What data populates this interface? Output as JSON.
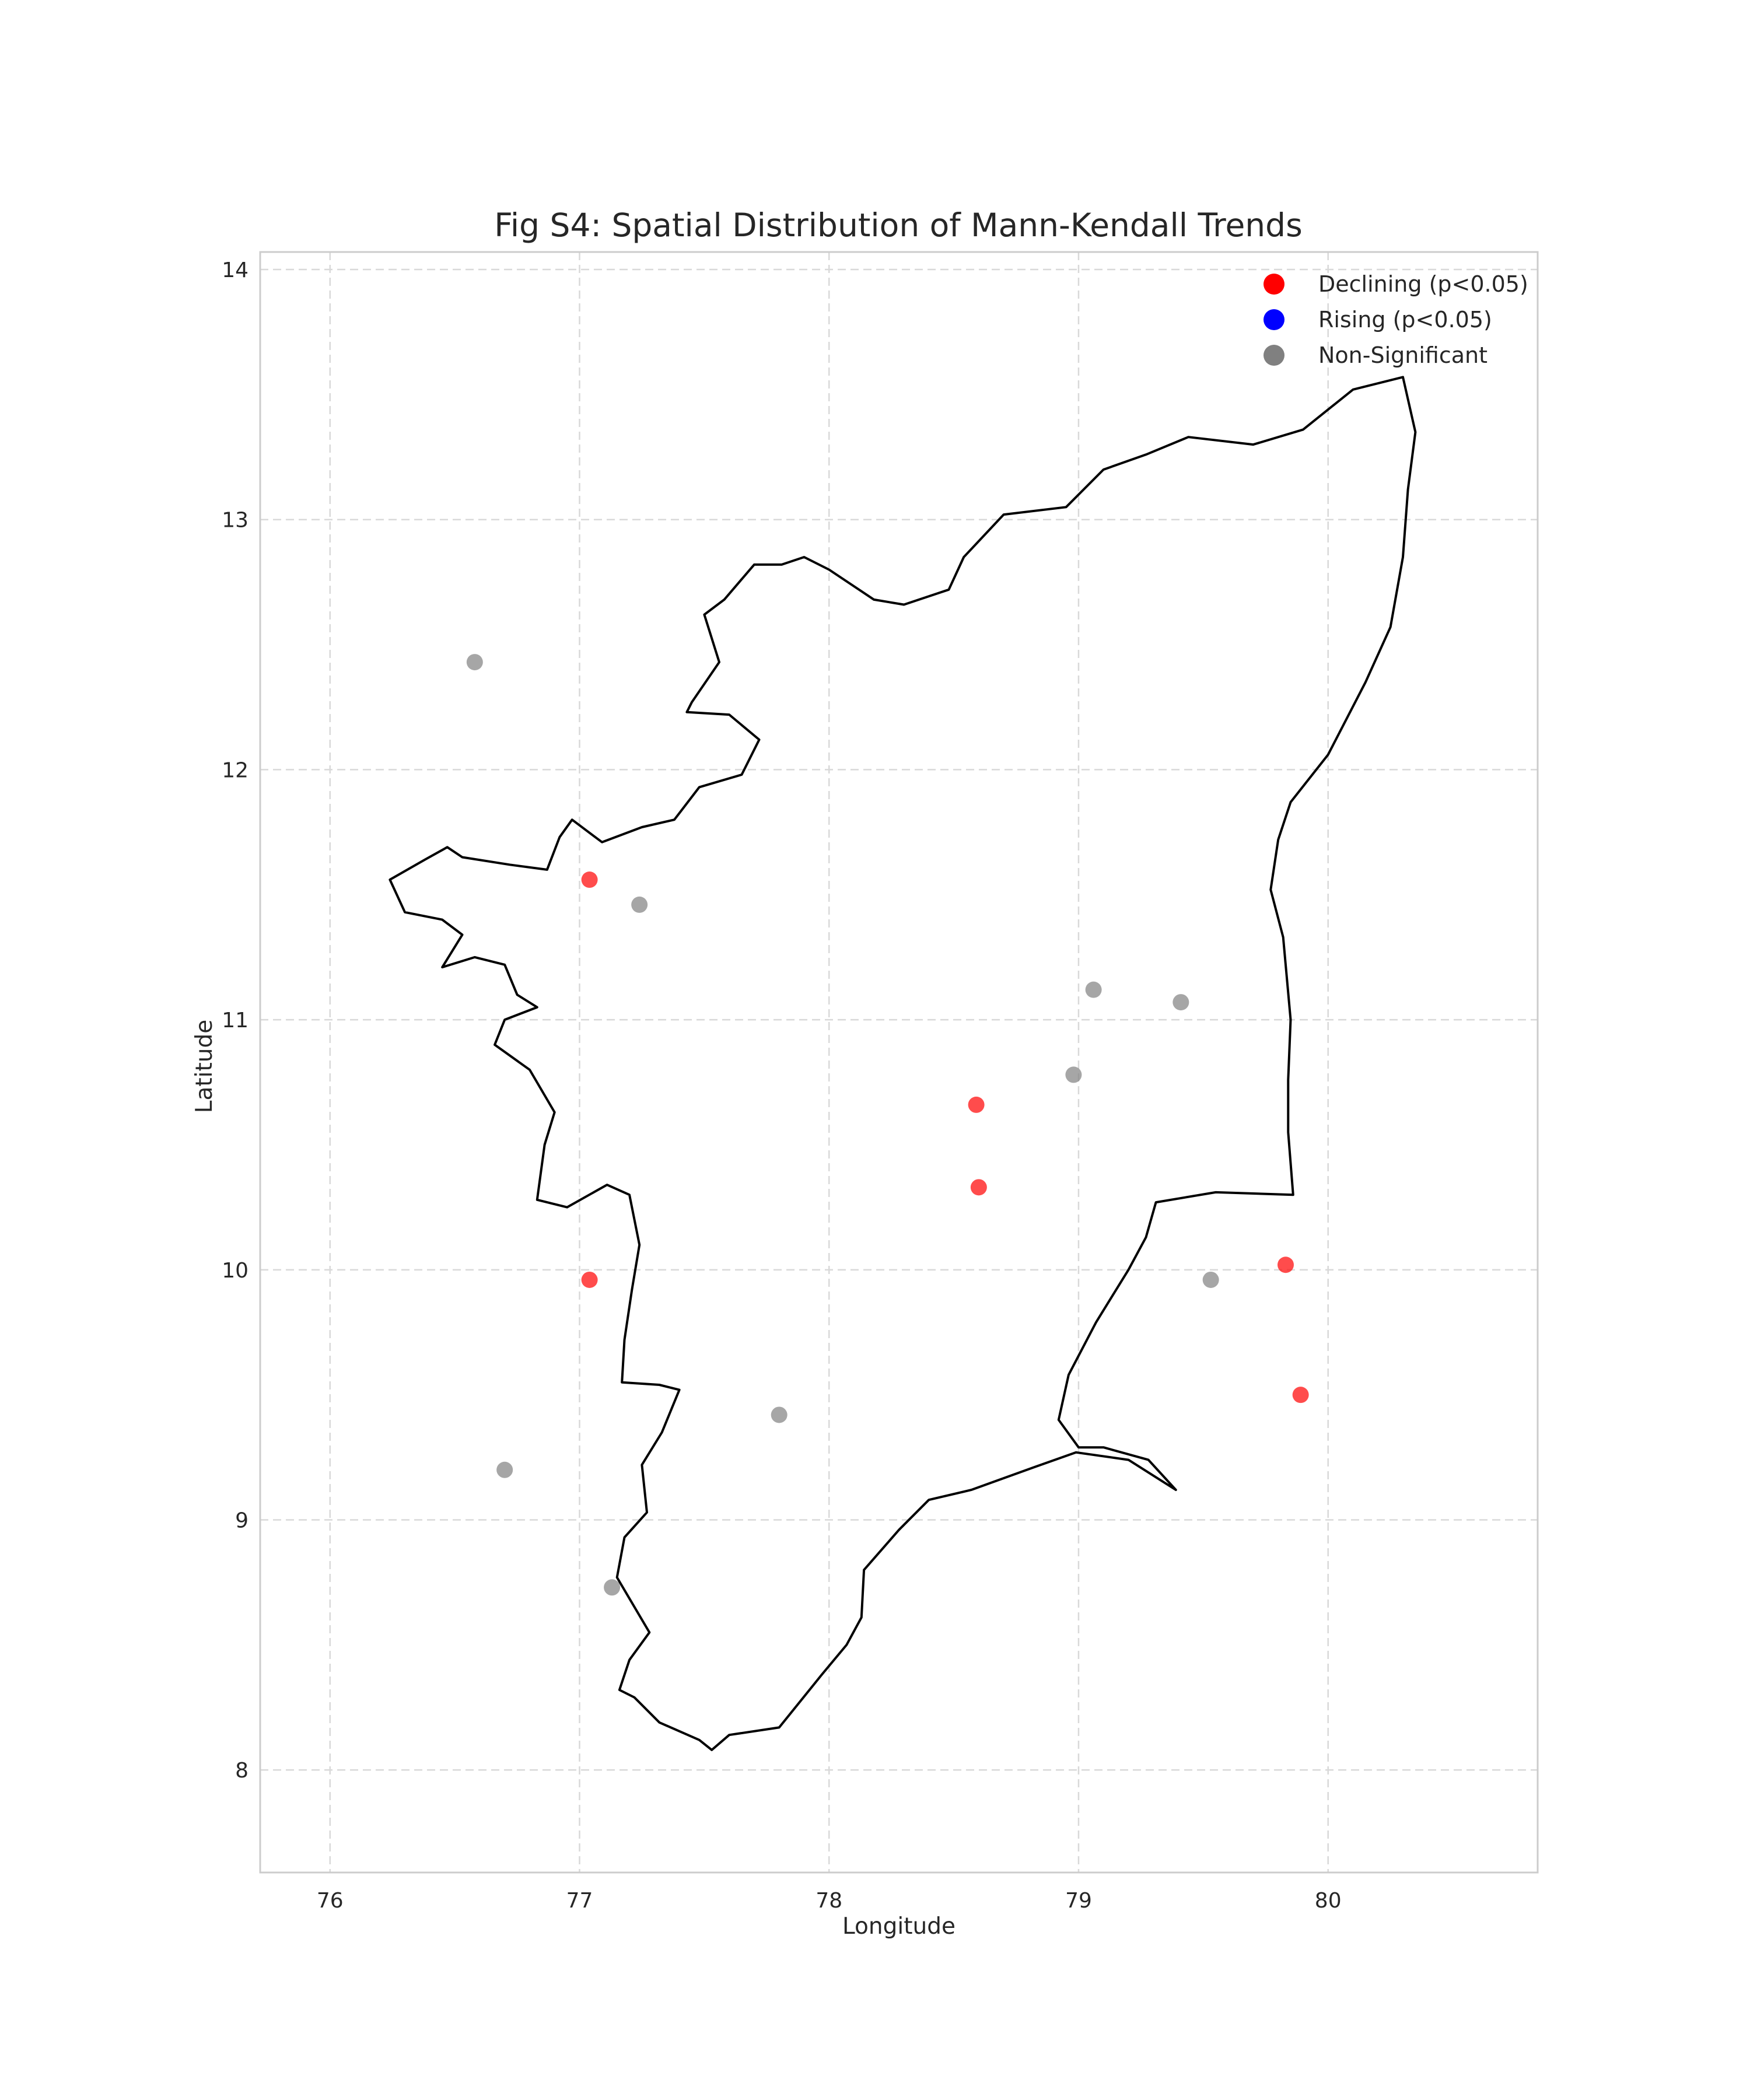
{
  "title": "Fig S4: Spatial Distribution of Mann-Kendall Trends",
  "chart_data": {
    "type": "scatter",
    "title": "Fig S4: Spatial Distribution of Mann-Kendall Trends",
    "xlabel": "Longitude",
    "ylabel": "Latitude",
    "xlim": [
      75.72,
      80.84
    ],
    "ylim": [
      7.59,
      14.07
    ],
    "xticks": [
      "76",
      "77",
      "78",
      "79",
      "80"
    ],
    "yticks": [
      "8",
      "9",
      "10",
      "11",
      "12",
      "13",
      "14"
    ],
    "grid": true,
    "legend_position": "top-right",
    "legend": [
      {
        "label": "Declining (p<0.05)",
        "color": "#ff0000"
      },
      {
        "label": "Rising (p<0.05)",
        "color": "#0000ff"
      },
      {
        "label": "Non-Significant",
        "color": "#808080"
      }
    ],
    "series": [
      {
        "name": "Declining (p<0.05)",
        "color": "#ff0000",
        "points": [
          {
            "x": 77.04,
            "y": 11.56
          },
          {
            "x": 78.59,
            "y": 10.66
          },
          {
            "x": 78.6,
            "y": 10.33
          },
          {
            "x": 77.04,
            "y": 9.96
          },
          {
            "x": 79.83,
            "y": 10.02
          },
          {
            "x": 79.89,
            "y": 9.5
          }
        ]
      },
      {
        "name": "Rising (p<0.05)",
        "color": "#0000ff",
        "points": []
      },
      {
        "name": "Non-Significant",
        "color": "#808080",
        "points": [
          {
            "x": 76.58,
            "y": 12.43
          },
          {
            "x": 77.24,
            "y": 11.46
          },
          {
            "x": 79.06,
            "y": 11.12
          },
          {
            "x": 79.41,
            "y": 11.07
          },
          {
            "x": 78.98,
            "y": 10.78
          },
          {
            "x": 79.53,
            "y": 9.96
          },
          {
            "x": 77.8,
            "y": 9.42
          },
          {
            "x": 76.7,
            "y": 9.2
          },
          {
            "x": 77.13,
            "y": 8.73
          }
        ]
      }
    ],
    "boundary": [
      [
        77.22,
        8.29
      ],
      [
        77.32,
        8.19
      ],
      [
        77.48,
        8.12
      ],
      [
        77.53,
        8.08
      ],
      [
        77.6,
        8.14
      ],
      [
        77.8,
        8.17
      ],
      [
        77.97,
        8.38
      ],
      [
        78.07,
        8.5
      ],
      [
        78.13,
        8.61
      ],
      [
        78.14,
        8.8
      ],
      [
        78.28,
        8.96
      ],
      [
        78.4,
        9.08
      ],
      [
        78.57,
        9.12
      ],
      [
        78.82,
        9.21
      ],
      [
        78.99,
        9.27
      ],
      [
        79.2,
        9.24
      ],
      [
        79.39,
        9.12
      ],
      [
        79.28,
        9.24
      ],
      [
        79.1,
        9.29
      ],
      [
        79.0,
        9.29
      ],
      [
        78.92,
        9.4
      ],
      [
        78.96,
        9.58
      ],
      [
        79.07,
        9.79
      ],
      [
        79.2,
        10.0
      ],
      [
        79.27,
        10.13
      ],
      [
        79.31,
        10.27
      ],
      [
        79.55,
        10.31
      ],
      [
        79.86,
        10.3
      ],
      [
        79.84,
        10.55
      ],
      [
        79.84,
        10.76
      ],
      [
        79.85,
        11.0
      ],
      [
        79.82,
        11.33
      ],
      [
        79.77,
        11.52
      ],
      [
        79.8,
        11.72
      ],
      [
        79.85,
        11.87
      ],
      [
        80.0,
        12.06
      ],
      [
        80.15,
        12.35
      ],
      [
        80.25,
        12.57
      ],
      [
        80.3,
        12.85
      ],
      [
        80.32,
        13.12
      ],
      [
        80.35,
        13.35
      ],
      [
        80.3,
        13.57
      ],
      [
        80.1,
        13.52
      ],
      [
        79.9,
        13.36
      ],
      [
        79.7,
        13.3
      ],
      [
        79.44,
        13.33
      ],
      [
        79.27,
        13.26
      ],
      [
        79.1,
        13.2
      ],
      [
        78.95,
        13.05
      ],
      [
        78.7,
        13.02
      ],
      [
        78.54,
        12.85
      ],
      [
        78.48,
        12.72
      ],
      [
        78.3,
        12.66
      ],
      [
        78.18,
        12.68
      ],
      [
        78.0,
        12.8
      ],
      [
        77.9,
        12.85
      ],
      [
        77.81,
        12.82
      ],
      [
        77.7,
        12.82
      ],
      [
        77.58,
        12.68
      ],
      [
        77.5,
        12.62
      ],
      [
        77.56,
        12.43
      ],
      [
        77.45,
        12.27
      ],
      [
        77.43,
        12.23
      ],
      [
        77.6,
        12.22
      ],
      [
        77.72,
        12.12
      ],
      [
        77.65,
        11.98
      ],
      [
        77.48,
        11.93
      ],
      [
        77.38,
        11.8
      ],
      [
        77.25,
        11.77
      ],
      [
        77.09,
        11.71
      ],
      [
        76.97,
        11.8
      ],
      [
        76.92,
        11.73
      ],
      [
        76.87,
        11.6
      ],
      [
        76.72,
        11.62
      ],
      [
        76.53,
        11.65
      ],
      [
        76.47,
        11.69
      ],
      [
        76.38,
        11.64
      ],
      [
        76.24,
        11.56
      ],
      [
        76.3,
        11.43
      ],
      [
        76.45,
        11.4
      ],
      [
        76.53,
        11.34
      ],
      [
        76.45,
        11.21
      ],
      [
        76.58,
        11.25
      ],
      [
        76.7,
        11.22
      ],
      [
        76.75,
        11.1
      ],
      [
        76.83,
        11.05
      ],
      [
        76.7,
        11.0
      ],
      [
        76.66,
        10.9
      ],
      [
        76.8,
        10.8
      ],
      [
        76.9,
        10.63
      ],
      [
        76.86,
        10.5
      ],
      [
        76.83,
        10.28
      ],
      [
        76.95,
        10.25
      ],
      [
        77.11,
        10.34
      ],
      [
        77.2,
        10.3
      ],
      [
        77.24,
        10.1
      ],
      [
        77.21,
        9.92
      ],
      [
        77.18,
        9.72
      ],
      [
        77.17,
        9.55
      ],
      [
        77.32,
        9.54
      ],
      [
        77.4,
        9.52
      ],
      [
        77.33,
        9.35
      ],
      [
        77.25,
        9.22
      ],
      [
        77.27,
        9.03
      ],
      [
        77.18,
        8.93
      ],
      [
        77.15,
        8.77
      ],
      [
        77.28,
        8.55
      ],
      [
        77.2,
        8.44
      ],
      [
        77.16,
        8.32
      ],
      [
        77.22,
        8.29
      ]
    ]
  }
}
